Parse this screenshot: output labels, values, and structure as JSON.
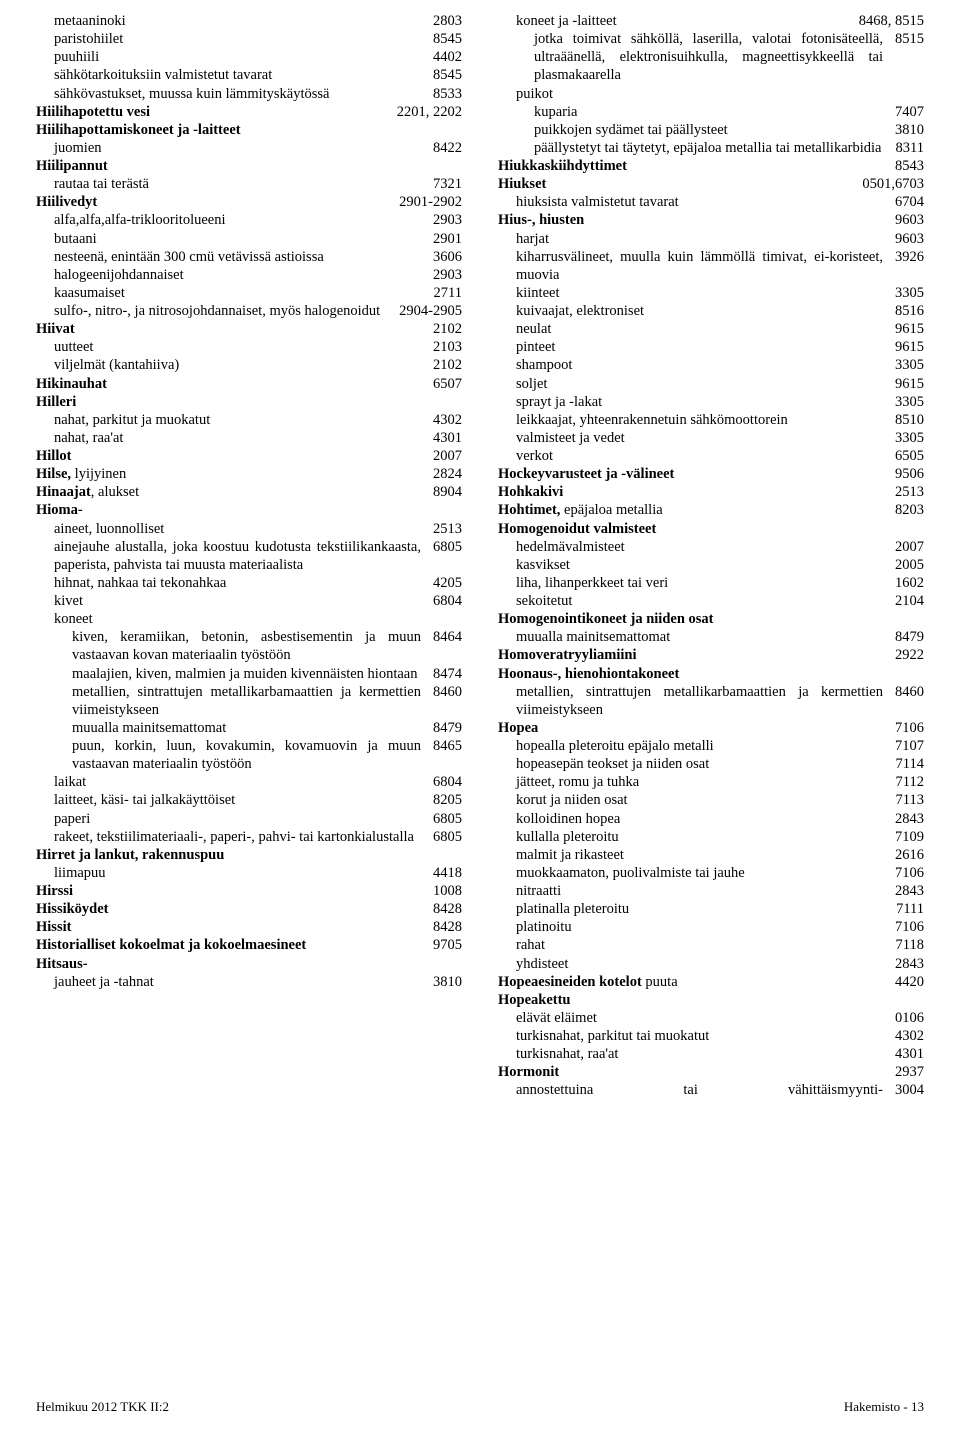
{
  "left": [
    {
      "t": "metaaninoki",
      "c": "2803",
      "b": false,
      "i": 1
    },
    {
      "t": "paristohiilet",
      "c": "8545",
      "b": false,
      "i": 1
    },
    {
      "t": "puuhiili",
      "c": "4402",
      "b": false,
      "i": 1
    },
    {
      "t": "sähkötarkoituksiin valmistetut tavarat",
      "c": "8545",
      "b": false,
      "i": 1
    },
    {
      "t": "sähkövastukset, muussa kuin lämmityskäytössä",
      "c": "8533",
      "b": false,
      "i": 1
    },
    {
      "t": "Hiilihapotettu vesi",
      "c": "2201, 2202",
      "b": true,
      "i": 0
    },
    {
      "t": "Hiilihapottamiskoneet ja -laitteet",
      "c": "",
      "b": true,
      "i": 0
    },
    {
      "t": "juomien",
      "c": "8422",
      "b": false,
      "i": 1
    },
    {
      "t": "Hiilipannut",
      "c": "",
      "b": true,
      "i": 0
    },
    {
      "t": "rautaa tai terästä",
      "c": "7321",
      "b": false,
      "i": 1
    },
    {
      "t": "Hiilivedyt",
      "c": "2901-2902",
      "b": true,
      "i": 0
    },
    {
      "t": "alfa,alfa,alfa-triklooritolueeni",
      "c": "2903",
      "b": false,
      "i": 1
    },
    {
      "t": "butaani",
      "c": "2901",
      "b": false,
      "i": 1
    },
    {
      "t": "nesteenä, enintään 300 cmü vetävissä astioissa",
      "c": "3606",
      "b": false,
      "i": 1
    },
    {
      "t": "halogeenijohdannaiset",
      "c": "2903",
      "b": false,
      "i": 1
    },
    {
      "t": "kaasumaiset",
      "c": "2711",
      "b": false,
      "i": 1
    },
    {
      "t": "sulfo-, nitro-, ja nitrosojohdannaiset, myös halogenoidut",
      "c": "2904-2905",
      "b": false,
      "i": 1
    },
    {
      "t": "Hiivat",
      "c": "2102",
      "b": true,
      "i": 0
    },
    {
      "t": "uutteet",
      "c": "2103",
      "b": false,
      "i": 1
    },
    {
      "t": "viljelmät (kantahiiva)",
      "c": "2102",
      "b": false,
      "i": 1
    },
    {
      "t": "Hikinauhat",
      "c": "6507",
      "b": true,
      "i": 0
    },
    {
      "t": "Hilleri",
      "c": "",
      "b": true,
      "i": 0
    },
    {
      "t": "nahat, parkitut ja muokatut",
      "c": "4302",
      "b": false,
      "i": 1
    },
    {
      "t": "nahat, raa'at",
      "c": "4301",
      "b": false,
      "i": 1
    },
    {
      "t": "Hillot",
      "c": "2007",
      "b": true,
      "i": 0
    },
    {
      "t": "Hilse, lyijyinen",
      "c": "2824",
      "b": true,
      "i": 0,
      "bl": 6
    },
    {
      "t": "Hinaajat, alukset",
      "c": "8904",
      "b": true,
      "i": 0,
      "bl": 8
    },
    {
      "t": "Hioma-",
      "c": "",
      "b": true,
      "i": 0
    },
    {
      "t": "aineet, luonnolliset",
      "c": "2513",
      "b": false,
      "i": 1
    },
    {
      "t": "ainejauhe alustalla, joka koostuu kudotusta tekstiilikankaasta, paperista, pahvista tai muusta materiaalista",
      "c": "6805",
      "b": false,
      "i": 1
    },
    {
      "t": "hihnat, nahkaa tai tekonahkaa",
      "c": "4205",
      "b": false,
      "i": 1
    },
    {
      "t": "kivet",
      "c": "6804",
      "b": false,
      "i": 1
    },
    {
      "t": "koneet",
      "c": "",
      "b": false,
      "i": 1
    },
    {
      "t": "kiven, keramiikan, betonin, asbestisementin ja muun vastaavan kovan materiaalin työstöön",
      "c": "8464",
      "b": false,
      "i": 2
    },
    {
      "t": "maalajien, kiven, malmien ja muiden kivennäisten hiontaan",
      "c": "8474",
      "b": false,
      "i": 2
    },
    {
      "t": "metallien, sintrattujen metallikarbamaattien ja kermettien viimeistykseen",
      "c": "8460",
      "b": false,
      "i": 2
    },
    {
      "t": "muualla mainitsemattomat",
      "c": "8479",
      "b": false,
      "i": 2
    },
    {
      "t": "puun, korkin, luun, kovakumin, kovamuovin ja muun vastaavan materiaalin työstöön",
      "c": "8465",
      "b": false,
      "i": 2
    },
    {
      "t": "laikat",
      "c": "6804",
      "b": false,
      "i": 1
    },
    {
      "t": "laitteet, käsi- tai jalkakäyttöiset",
      "c": "8205",
      "b": false,
      "i": 1
    },
    {
      "t": "paperi",
      "c": "6805",
      "b": false,
      "i": 1
    },
    {
      "t": "rakeet, tekstiilimateriaali-, paperi-, pahvi- tai kartonkialustalla",
      "c": "6805",
      "b": false,
      "i": 1
    },
    {
      "t": "Hirret ja lankut, rakennuspuu",
      "c": "",
      "b": true,
      "i": 0
    },
    {
      "t": "liimapuu",
      "c": "4418",
      "b": false,
      "i": 1
    },
    {
      "t": "Hirssi",
      "c": "1008",
      "b": true,
      "i": 0
    },
    {
      "t": "Hissiköydet",
      "c": "8428",
      "b": true,
      "i": 0
    },
    {
      "t": "Hissit",
      "c": "8428",
      "b": true,
      "i": 0
    },
    {
      "t": "Historialliset kokoelmat ja kokoelmaesineet",
      "c": "9705",
      "b": true,
      "i": 0
    },
    {
      "t": "Hitsaus-",
      "c": "",
      "b": true,
      "i": 0
    },
    {
      "t": "jauheet ja -tahnat",
      "c": "3810",
      "b": false,
      "i": 1
    }
  ],
  "right": [
    {
      "t": "koneet ja -laitteet",
      "c": "8468, 8515",
      "b": false,
      "i": 1
    },
    {
      "t": "jotka toimivat sähköllä, laserilla, valotai fotonisäteellä, ultraäänellä, elektronisuihkulla, magneettisykkeellä tai plasmakaarella",
      "c": "8515",
      "b": false,
      "i": 2
    },
    {
      "t": "puikot",
      "c": "",
      "b": false,
      "i": 1
    },
    {
      "t": "kuparia",
      "c": "7407",
      "b": false,
      "i": 2
    },
    {
      "t": "puikkojen sydämet tai päällysteet",
      "c": "3810",
      "b": false,
      "i": 2
    },
    {
      "t": "päällystetyt tai täytetyt, epäjaloa metallia tai metallikarbidia",
      "c": "8311",
      "b": false,
      "i": 2
    },
    {
      "t": "Hiukkaskiihdyttimet",
      "c": "8543",
      "b": true,
      "i": 0
    },
    {
      "t": "Hiukset",
      "c": "0501,6703",
      "b": true,
      "i": 0
    },
    {
      "t": "hiuksista valmistetut tavarat",
      "c": "6704",
      "b": false,
      "i": 1
    },
    {
      "t": "Hius-, hiusten",
      "c": "9603",
      "b": true,
      "i": 0
    },
    {
      "t": "harjat",
      "c": "9603",
      "b": false,
      "i": 1
    },
    {
      "t": "kiharrusvälineet, muulla kuin lämmöllä timivat, ei-koristeet, muovia",
      "c": "3926",
      "b": false,
      "i": 1
    },
    {
      "t": "kiinteet",
      "c": "3305",
      "b": false,
      "i": 1
    },
    {
      "t": "kuivaajat, elektroniset",
      "c": "8516",
      "b": false,
      "i": 1
    },
    {
      "t": "neulat",
      "c": "9615",
      "b": false,
      "i": 1
    },
    {
      "t": "pinteet",
      "c": "9615",
      "b": false,
      "i": 1
    },
    {
      "t": "shampoot",
      "c": "3305",
      "b": false,
      "i": 1
    },
    {
      "t": "soljet",
      "c": "9615",
      "b": false,
      "i": 1
    },
    {
      "t": "sprayt ja -lakat",
      "c": "3305",
      "b": false,
      "i": 1
    },
    {
      "t": "leikkaajat, yhteenrakennetuin sähkömoottorein",
      "c": "8510",
      "b": false,
      "i": 1
    },
    {
      "t": "valmisteet ja vedet",
      "c": "3305",
      "b": false,
      "i": 1
    },
    {
      "t": "verkot",
      "c": "6505",
      "b": false,
      "i": 1
    },
    {
      "t": "Hockeyvarusteet ja -välineet",
      "c": "9506",
      "b": true,
      "i": 0
    },
    {
      "t": "Hohkakivi",
      "c": "2513",
      "b": true,
      "i": 0
    },
    {
      "t": "Hohtimet, epäjaloa metallia",
      "c": "8203",
      "b": true,
      "i": 0,
      "bl": 9
    },
    {
      "t": "Homogenoidut valmisteet",
      "c": "",
      "b": true,
      "i": 0
    },
    {
      "t": "hedelmävalmisteet",
      "c": "2007",
      "b": false,
      "i": 1
    },
    {
      "t": "kasvikset",
      "c": "2005",
      "b": false,
      "i": 1
    },
    {
      "t": "liha, lihanperkkeet tai veri",
      "c": "1602",
      "b": false,
      "i": 1
    },
    {
      "t": "sekoitetut",
      "c": "2104",
      "b": false,
      "i": 1
    },
    {
      "t": "Homogenointikoneet ja niiden osat",
      "c": "",
      "b": true,
      "i": 0
    },
    {
      "t": "muualla mainitsemattomat",
      "c": "8479",
      "b": false,
      "i": 1
    },
    {
      "t": "Homoveratryyliamiini",
      "c": "2922",
      "b": true,
      "i": 0
    },
    {
      "t": "Hoonaus-, hienohiontakoneet",
      "c": "",
      "b": true,
      "i": 0
    },
    {
      "t": "metallien, sintrattujen metallikarbamaattien ja kermettien viimeistykseen",
      "c": "8460",
      "b": false,
      "i": 1
    },
    {
      "t": "Hopea",
      "c": "7106",
      "b": true,
      "i": 0
    },
    {
      "t": "hopealla pleteroitu epäjalo metalli",
      "c": "7107",
      "b": false,
      "i": 1
    },
    {
      "t": "hopeasepän teokset ja niiden osat",
      "c": "7114",
      "b": false,
      "i": 1
    },
    {
      "t": "jätteet, romu ja tuhka",
      "c": "7112",
      "b": false,
      "i": 1
    },
    {
      "t": "korut ja niiden osat",
      "c": "7113",
      "b": false,
      "i": 1
    },
    {
      "t": "kolloidinen hopea",
      "c": "2843",
      "b": false,
      "i": 1
    },
    {
      "t": "kullalla pleteroitu",
      "c": "7109",
      "b": false,
      "i": 1
    },
    {
      "t": "malmit ja rikasteet",
      "c": "2616",
      "b": false,
      "i": 1
    },
    {
      "t": "muokkaamaton, puolivalmiste tai jauhe",
      "c": "7106",
      "b": false,
      "i": 1
    },
    {
      "t": "nitraatti",
      "c": "2843",
      "b": false,
      "i": 1
    },
    {
      "t": "platinalla pleteroitu",
      "c": "7111",
      "b": false,
      "i": 1
    },
    {
      "t": "platinoitu",
      "c": "7106",
      "b": false,
      "i": 1
    },
    {
      "t": "rahat",
      "c": "7118",
      "b": false,
      "i": 1
    },
    {
      "t": "yhdisteet",
      "c": "2843",
      "b": false,
      "i": 1
    },
    {
      "t": "Hopeaesineiden kotelot  puuta",
      "c": "4420",
      "b": true,
      "i": 0,
      "bl": 22
    },
    {
      "t": "Hopeakettu",
      "c": "",
      "b": true,
      "i": 0
    },
    {
      "t": "elävät eläimet",
      "c": "0106",
      "b": false,
      "i": 1
    },
    {
      "t": "turkisnahat, parkitut tai muokatut",
      "c": "4302",
      "b": false,
      "i": 1
    },
    {
      "t": "turkisnahat, raa'at",
      "c": "4301",
      "b": false,
      "i": 1
    },
    {
      "t": "Hormonit",
      "c": "2937",
      "b": true,
      "i": 0
    },
    {
      "t": "annostettuina tai vähittäismyynti-",
      "c": "3004",
      "b": false,
      "i": 1,
      "j": true
    }
  ],
  "footer": {
    "left": "Helmikuu 2012 TKK II:2",
    "right": "Hakemisto - 13"
  }
}
